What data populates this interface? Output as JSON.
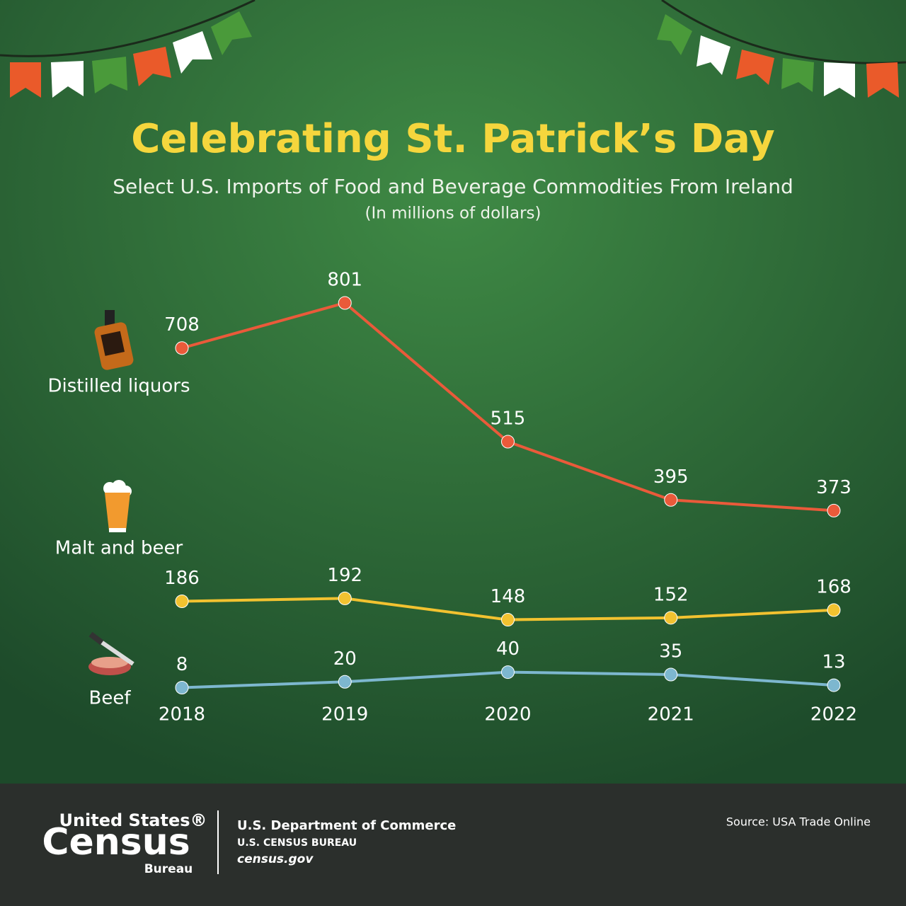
{
  "chart_data": {
    "type": "line",
    "title": "Celebrating St. Patrick’s Day",
    "subtitle": "Select U.S. Imports of Food and Beverage Commodities From Ireland",
    "unit_note": "(In millions of dollars)",
    "categories": [
      "2018",
      "2019",
      "2020",
      "2021",
      "2022"
    ],
    "series": [
      {
        "name": "Distilled liquors",
        "color": "#ea5a3a",
        "values": [
          708,
          801,
          515,
          395,
          373
        ]
      },
      {
        "name": "Malt and beer",
        "color": "#f2c230",
        "values": [
          186,
          192,
          148,
          152,
          168
        ]
      },
      {
        "name": "Beef",
        "color": "#7db7cf",
        "values": [
          8,
          20,
          40,
          35,
          13
        ]
      }
    ]
  },
  "footer": {
    "logo_top": "United States®",
    "logo_main": "Census",
    "logo_bottom": "Bureau",
    "department": "U.S. Department of Commerce",
    "bureau": "U.S. CENSUS BUREAU",
    "site": "census.gov",
    "source": "Source: USA Trade Online"
  }
}
